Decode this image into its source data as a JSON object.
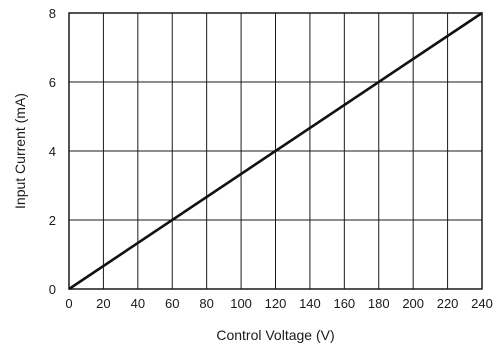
{
  "chart_data": {
    "type": "line",
    "title": "",
    "xlabel": "Control Voltage (V)",
    "ylabel": "Input Current (mA)",
    "xlim": [
      0,
      240
    ],
    "ylim": [
      0,
      8
    ],
    "x_ticks": [
      0,
      20,
      40,
      60,
      80,
      100,
      120,
      140,
      160,
      180,
      200,
      220,
      240
    ],
    "y_ticks": [
      0,
      2,
      4,
      6,
      8
    ],
    "x_tick_labels": [
      "0",
      "20",
      "40",
      "60",
      "80",
      "100",
      "120",
      "140",
      "160",
      "180",
      "200",
      "220",
      "240"
    ],
    "y_tick_labels": [
      "0",
      "2",
      "4",
      "6",
      "8"
    ],
    "grid": true,
    "series": [
      {
        "x": [
          0,
          240
        ],
        "y": [
          0,
          8
        ],
        "color": "#111111"
      }
    ]
  }
}
